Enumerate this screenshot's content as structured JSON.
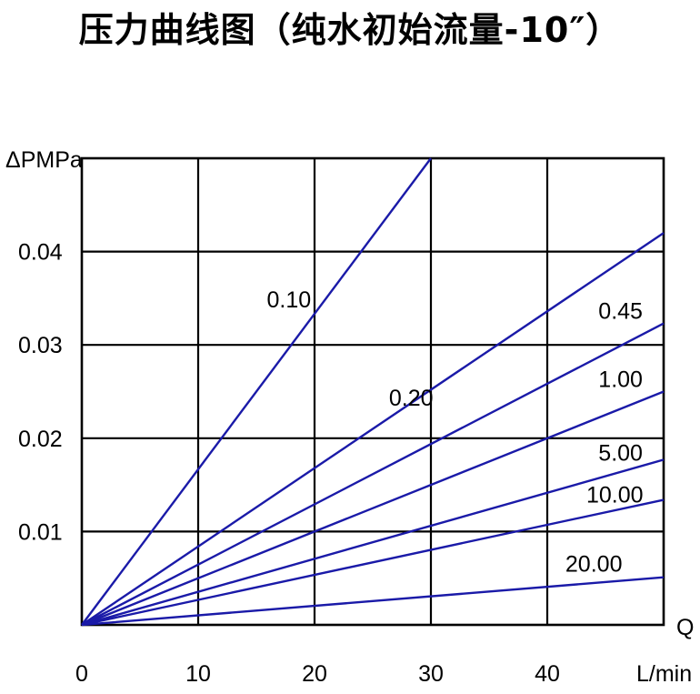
{
  "title": "压力曲线图（纯水初始流量-10″）",
  "chart_data": {
    "type": "line",
    "title": "压力曲线图（纯水初始流量-10″）",
    "xlabel": "L/min",
    "xlabel_symbol": "Q",
    "ylabel": "ΔPMPa",
    "xlim": [
      0,
      50
    ],
    "ylim": [
      0,
      0.05
    ],
    "x_ticks": [
      0,
      10,
      20,
      30,
      40
    ],
    "x_tick_labels": [
      "0",
      "10",
      "20",
      "30",
      "40"
    ],
    "y_ticks": [
      0.01,
      0.02,
      0.03,
      0.04
    ],
    "y_tick_labels": [
      "0.01",
      "0.02",
      "0.03",
      "0.04"
    ],
    "grid": true,
    "line_color": "#1a1aa8",
    "series": [
      {
        "name": "0.10",
        "x": [
          0,
          30
        ],
        "y": [
          0,
          0.05
        ],
        "label_at": [
          17.8,
          0.034
        ]
      },
      {
        "name": "0.20",
        "x": [
          0,
          50
        ],
        "y": [
          0,
          0.042
        ],
        "label_at": [
          28.3,
          0.0235
        ]
      },
      {
        "name": "0.45",
        "x": [
          0,
          50
        ],
        "y": [
          0,
          0.0323
        ],
        "label_at": [
          46.3,
          0.0328
        ]
      },
      {
        "name": "1.00",
        "x": [
          0,
          50
        ],
        "y": [
          0,
          0.025
        ],
        "label_at": [
          46.3,
          0.0255
        ]
      },
      {
        "name": "5.00",
        "x": [
          0,
          50
        ],
        "y": [
          0,
          0.0177
        ],
        "label_at": [
          46.3,
          0.0176
        ]
      },
      {
        "name": "10.00",
        "x": [
          0,
          50
        ],
        "y": [
          0,
          0.0134
        ],
        "label_at": [
          45.8,
          0.0131
        ]
      },
      {
        "name": "20.00",
        "x": [
          0,
          50
        ],
        "y": [
          0,
          0.0051
        ],
        "label_at": [
          44.0,
          0.0057
        ]
      }
    ]
  }
}
